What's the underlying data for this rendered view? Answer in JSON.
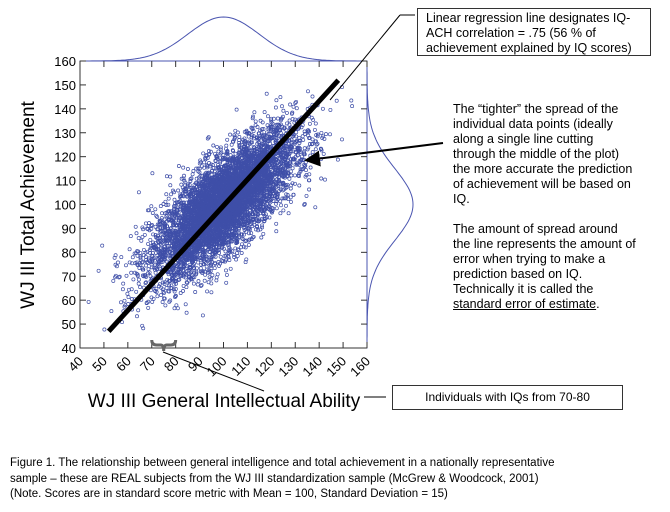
{
  "chart_data": {
    "type": "scatter",
    "xlabel": "WJ III General Intellectual Ability",
    "ylabel": "WJ III Total Achievement",
    "xlim": [
      40,
      160
    ],
    "ylim": [
      40,
      160
    ],
    "x_ticks": [
      "40",
      "50",
      "60",
      "70",
      "80",
      "90",
      "100",
      "110",
      "120",
      "130",
      "140",
      "150",
      "160"
    ],
    "y_ticks": [
      "40",
      "50",
      "60",
      "70",
      "80",
      "90",
      "100",
      "110",
      "120",
      "130",
      "140",
      "150",
      "160"
    ],
    "grid": false,
    "marker_color": "#3f4fa8",
    "marker": "open-circle",
    "distribution": {
      "mean": 100,
      "sd": 15,
      "correlation": 0.75
    },
    "regression_line": {
      "x": [
        52,
        148
      ],
      "y": [
        47,
        152
      ],
      "color": "#000000"
    },
    "marginal_density_color": "#4a55b0",
    "highlight_range_x": [
      70,
      80
    ]
  },
  "annotations": {
    "regression_box": "Linear regression line designates IQ-ACH correlation = .75 (56 % of achievement explained by IQ scores)",
    "spread_note_1": "The “tighter” the spread of the individual data points (ideally along a single line cutting through the middle of the plot) the more accurate the prediction of achievement will be based on IQ.",
    "spread_note_2_prefix": "The amount of spread around the line represents the amount of error when trying to make a prediction based on IQ. Technically it is called the ",
    "spread_note_2_term": "standard error of estimate",
    "spread_note_2_suffix": ".",
    "iq_range_box": "Individuals with IQs from 70-80"
  },
  "caption": {
    "line1": "Figure 1.  The relationship between general intelligence and total achievement in a nationally representative",
    "line2": "sample – these are REAL subjects from the WJ III standardization sample (McGrew & Woodcock, 2001)",
    "line3": "(Note.  Scores are in standard score metric with Mean = 100, Standard Deviation = 15)"
  }
}
